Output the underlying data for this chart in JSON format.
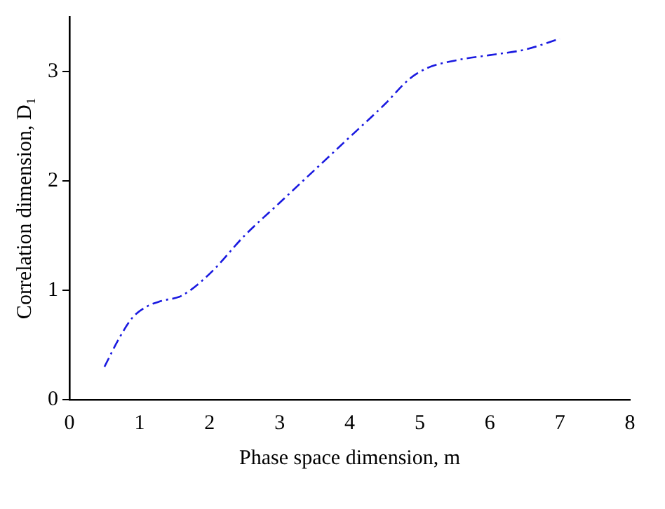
{
  "chart_data": {
    "type": "line",
    "xlabel": "Phase space dimension, m",
    "ylabel": "Correlation dimension, D₁",
    "xlim": [
      0,
      8
    ],
    "xticks": [
      0,
      1,
      2,
      3,
      4,
      5,
      6,
      7,
      8
    ],
    "ylim": [
      0,
      3.5
    ],
    "yticks": [
      0,
      1,
      2,
      3
    ],
    "grid": false,
    "legend": false,
    "marker": "none",
    "line_style": "dashed",
    "series": [
      {
        "color": "#1a1ae0",
        "x": [
          0.5,
          0.7,
          0.9,
          1.1,
          1.3,
          1.6,
          2,
          2.5,
          3,
          3.5,
          4,
          4.5,
          4.85,
          5.1,
          5.5,
          6,
          6.5,
          7
        ],
        "values": [
          0.3,
          0.55,
          0.75,
          0.85,
          0.9,
          0.95,
          1.15,
          1.5,
          1.8,
          2.1,
          2.4,
          2.7,
          2.93,
          3.03,
          3.1,
          3.15,
          3.2,
          3.3
        ]
      }
    ]
  }
}
